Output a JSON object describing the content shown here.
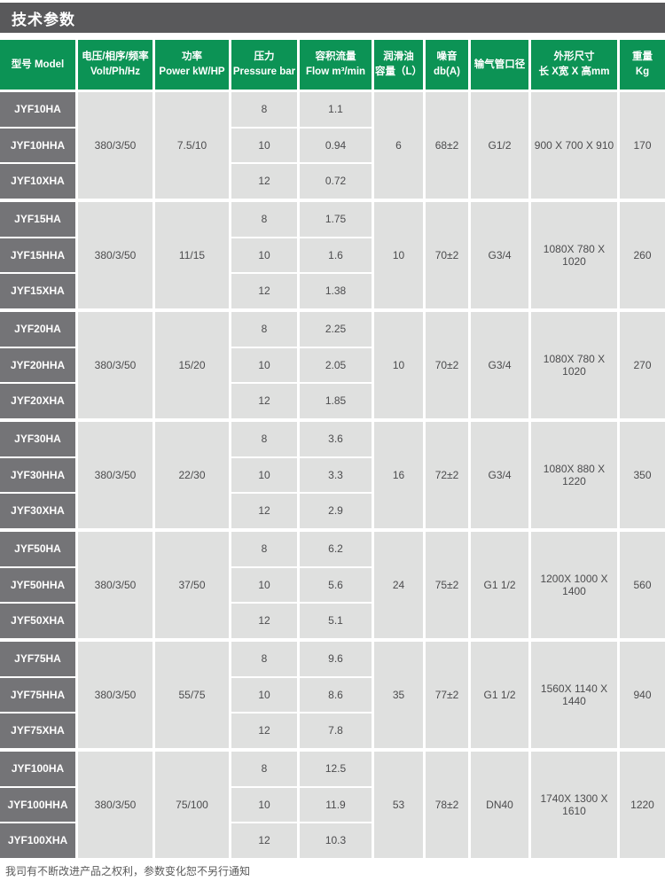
{
  "page": {
    "title": "技术参数",
    "footer": "我司有不断改进产品之权利，参数变化恕不另行通知"
  },
  "colors": {
    "title_bar": "#59595b",
    "header_green": "#0c9355",
    "model_cell": "#747477",
    "data_cell": "#dfe0df",
    "data_text": "#4c4c4e"
  },
  "table": {
    "column_keys": [
      "model",
      "voltage",
      "power",
      "pressure",
      "flow",
      "oil",
      "noise",
      "pipe",
      "dimensions",
      "weight"
    ],
    "headers": [
      {
        "line1": "型号 Model",
        "line2": ""
      },
      {
        "line1": "电压/相序/频率",
        "line2": "Volt/Ph/Hz"
      },
      {
        "line1": "功率",
        "line2": "Power kW/HP"
      },
      {
        "line1": "压力",
        "line2": "Pressure bar"
      },
      {
        "line1": "容积流量",
        "line2": "Flow m³/min"
      },
      {
        "line1": "润滑油",
        "line2": "容量（L）"
      },
      {
        "line1": "噪音",
        "line2": "db(A)"
      },
      {
        "line1": "输气管口径",
        "line2": ""
      },
      {
        "line1": "外形尺寸",
        "line2": "长 X宽 X 高mm"
      },
      {
        "line1": "重量",
        "line2": "Kg"
      }
    ],
    "groups": [
      {
        "models": [
          "JYF10HA",
          "JYF10HHA",
          "JYF10XHA"
        ],
        "voltage": "380/3/50",
        "power": "7.5/10",
        "pressures": [
          "8",
          "10",
          "12"
        ],
        "flows": [
          "1.1",
          "0.94",
          "0.72"
        ],
        "oil": "6",
        "noise": "68±2",
        "pipe": "G1/2",
        "dimensions": "900 X 700 X 910",
        "weight": "170"
      },
      {
        "models": [
          "JYF15HA",
          "JYF15HHA",
          "JYF15XHA"
        ],
        "voltage": "380/3/50",
        "power": "11/15",
        "pressures": [
          "8",
          "10",
          "12"
        ],
        "flows": [
          "1.75",
          "1.6",
          "1.38"
        ],
        "oil": "10",
        "noise": "70±2",
        "pipe": "G3/4",
        "dimensions": "1080X 780 X 1020",
        "weight": "260"
      },
      {
        "models": [
          "JYF20HA",
          "JYF20HHA",
          "JYF20XHA"
        ],
        "voltage": "380/3/50",
        "power": "15/20",
        "pressures": [
          "8",
          "10",
          "12"
        ],
        "flows": [
          "2.25",
          "2.05",
          "1.85"
        ],
        "oil": "10",
        "noise": "70±2",
        "pipe": "G3/4",
        "dimensions": "1080X 780 X 1020",
        "weight": "270"
      },
      {
        "models": [
          "JYF30HA",
          "JYF30HHA",
          "JYF30XHA"
        ],
        "voltage": "380/3/50",
        "power": "22/30",
        "pressures": [
          "8",
          "10",
          "12"
        ],
        "flows": [
          "3.6",
          "3.3",
          "2.9"
        ],
        "oil": "16",
        "noise": "72±2",
        "pipe": "G3/4",
        "dimensions": "1080X 880 X 1220",
        "weight": "350"
      },
      {
        "models": [
          "JYF50HA",
          "JYF50HHA",
          "JYF50XHA"
        ],
        "voltage": "380/3/50",
        "power": "37/50",
        "pressures": [
          "8",
          "10",
          "12"
        ],
        "flows": [
          "6.2",
          "5.6",
          "5.1"
        ],
        "oil": "24",
        "noise": "75±2",
        "pipe": "G1 1/2",
        "dimensions": "1200X 1000 X 1400",
        "weight": "560"
      },
      {
        "models": [
          "JYF75HA",
          "JYF75HHA",
          "JYF75XHA"
        ],
        "voltage": "380/3/50",
        "power": "55/75",
        "pressures": [
          "8",
          "10",
          "12"
        ],
        "flows": [
          "9.6",
          "8.6",
          "7.8"
        ],
        "oil": "35",
        "noise": "77±2",
        "pipe": "G1 1/2",
        "dimensions": "1560X 1140 X 1440",
        "weight": "940"
      },
      {
        "models": [
          "JYF100HA",
          "JYF100HHA",
          "JYF100XHA"
        ],
        "voltage": "380/3/50",
        "power": "75/100",
        "pressures": [
          "8",
          "10",
          "12"
        ],
        "flows": [
          "12.5",
          "11.9",
          "10.3"
        ],
        "oil": "53",
        "noise": "78±2",
        "pipe": "DN40",
        "dimensions": "1740X 1300 X 1610",
        "weight": "1220"
      }
    ]
  }
}
